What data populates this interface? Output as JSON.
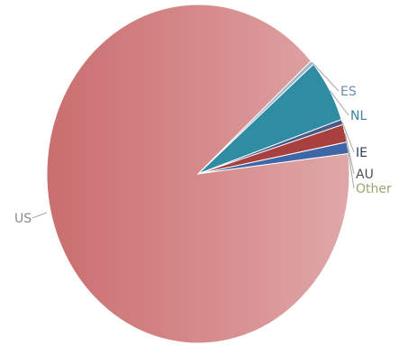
{
  "chart_data": {
    "type": "pie",
    "title": "",
    "legend": "none",
    "slices": [
      {
        "label": "US",
        "value": 90.3,
        "color": "#cf7b7a",
        "label_color": "#8a8a8a"
      },
      {
        "label": "ES",
        "value": 0.4,
        "color": "#9bb7c9",
        "label_color": "#6e8ba6"
      },
      {
        "label": "NL",
        "value": 6.0,
        "color": "#2f8ca3",
        "label_color": "#3d7fa1"
      },
      {
        "label": "IE",
        "value": 0.5,
        "color": "#4a5a86",
        "label_color": "#2f3b5c"
      },
      {
        "label": "AU",
        "value": 1.7,
        "color": "#a94040",
        "label_color": "#4f4f4f"
      },
      {
        "label": "Other",
        "value": 1.1,
        "color": "#3e67a7",
        "label_color": "#9aa56e"
      }
    ]
  }
}
